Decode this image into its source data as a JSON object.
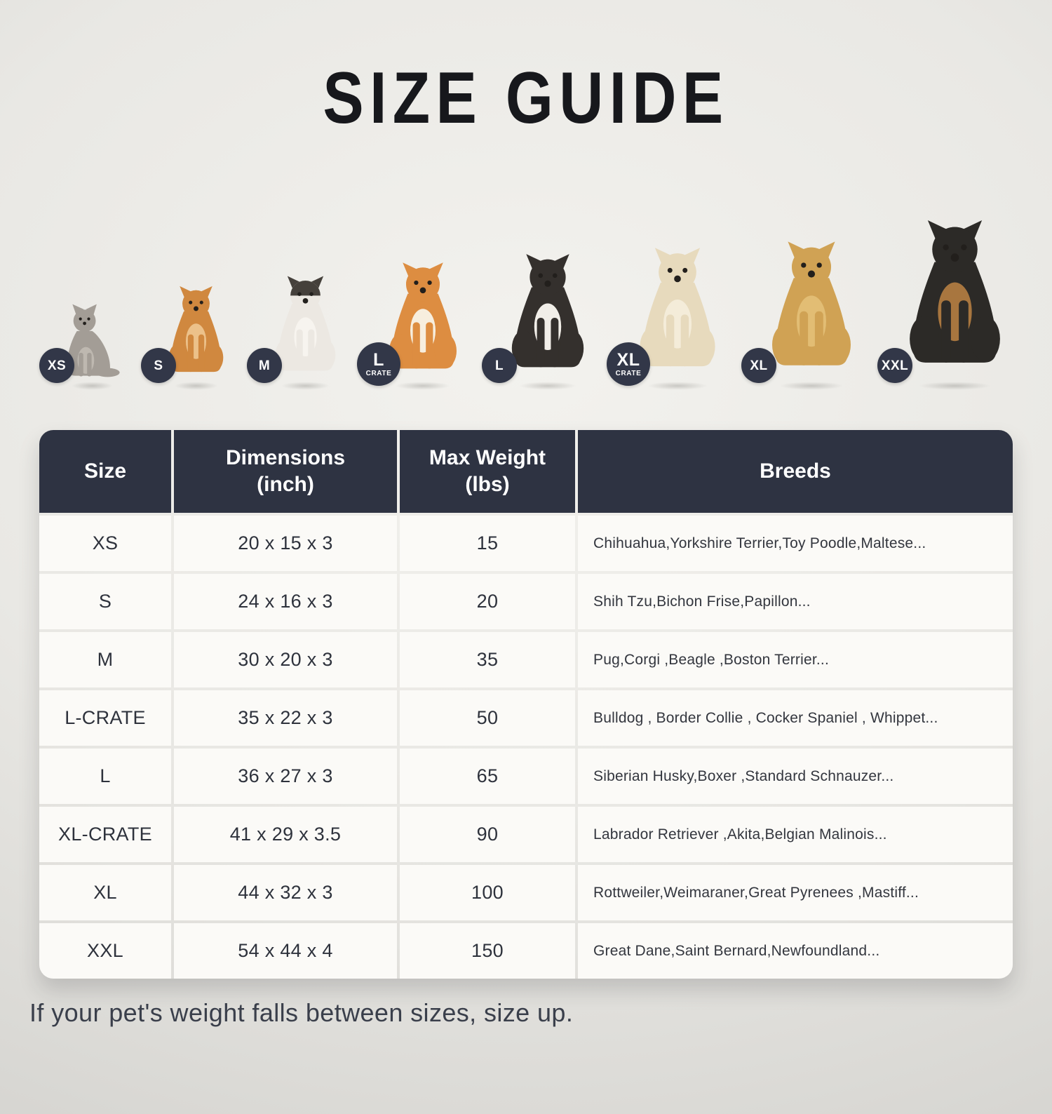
{
  "title": "SIZE GUIDE",
  "colors": {
    "header_bg": "#2e3342",
    "badge_bg": "#323748",
    "cell_bg": "#fbfaf7",
    "title_color": "#17181c",
    "footer_color": "#3a3f4b"
  },
  "pets": [
    {
      "animal": "cat",
      "badge": "XS",
      "badge_sub": "",
      "color": "#a39d96",
      "accent": "#beb8b0",
      "display_height": 130
    },
    {
      "animal": "pomeranian",
      "badge": "S",
      "badge_sub": "",
      "color": "#d0883f",
      "accent": "#ecc18a",
      "display_height": 162
    },
    {
      "animal": "french-bulldog",
      "badge": "M",
      "badge_sub": "",
      "color": "#ece8e2",
      "accent": "#f7f4ef",
      "head_color": "#45403b",
      "display_height": 178
    },
    {
      "animal": "shiba-inu",
      "badge": "L",
      "badge_sub": "CRATE",
      "color": "#dd8d41",
      "accent": "#f7eede",
      "display_height": 200
    },
    {
      "animal": "border-collie",
      "badge": "L",
      "badge_sub": "",
      "color": "#34302d",
      "accent": "#f1eee8",
      "display_height": 214
    },
    {
      "animal": "labrador",
      "badge": "XL",
      "badge_sub": "CRATE",
      "color": "#e7dabd",
      "accent": "#f4ecd9",
      "display_height": 224
    },
    {
      "animal": "golden-retriever",
      "badge": "XL",
      "badge_sub": "",
      "color": "#d0a254",
      "accent": "#e2bd74",
      "display_height": 234
    },
    {
      "animal": "doberman",
      "badge": "XXL",
      "badge_sub": "",
      "color": "#2c2a27",
      "accent": "#a8763f",
      "display_height": 268
    }
  ],
  "table": {
    "headers": [
      {
        "label": "Size",
        "sub": ""
      },
      {
        "label": "Dimensions",
        "sub": "(inch)"
      },
      {
        "label": "Max Weight",
        "sub": "(lbs)"
      },
      {
        "label": "Breeds",
        "sub": ""
      }
    ],
    "rows": [
      {
        "size": "XS",
        "dimensions": "20 x 15 x 3",
        "max_weight": "15",
        "breeds": "Chihuahua,Yorkshire Terrier,Toy Poodle,Maltese..."
      },
      {
        "size": "S",
        "dimensions": "24 x 16 x 3",
        "max_weight": "20",
        "breeds": "Shih Tzu,Bichon Frise,Papillon..."
      },
      {
        "size": "M",
        "dimensions": "30 x 20 x 3",
        "max_weight": "35",
        "breeds": "Pug,Corgi ,Beagle ,Boston Terrier..."
      },
      {
        "size": "L-CRATE",
        "dimensions": "35 x 22 x 3",
        "max_weight": "50",
        "breeds": "Bulldog , Border Collie , Cocker Spaniel , Whippet..."
      },
      {
        "size": "L",
        "dimensions": "36 x 27 x 3",
        "max_weight": "65",
        "breeds": "Siberian Husky,Boxer ,Standard Schnauzer..."
      },
      {
        "size": "XL-CRATE",
        "dimensions": "41 x 29 x 3.5",
        "max_weight": "90",
        "breeds": "Labrador Retriever ,Akita,Belgian Malinois..."
      },
      {
        "size": "XL",
        "dimensions": "44 x 32 x 3",
        "max_weight": "100",
        "breeds": "Rottweiler,Weimaraner,Great Pyrenees ,Mastiff..."
      },
      {
        "size": "XXL",
        "dimensions": "54 x 44 x 4",
        "max_weight": "150",
        "breeds": "Great Dane,Saint Bernard,Newfoundland..."
      }
    ]
  },
  "footer": "If your pet's weight falls between sizes, size up."
}
